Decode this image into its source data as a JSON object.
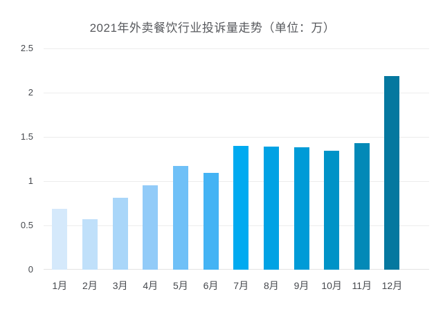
{
  "chart_data": {
    "type": "bar",
    "title": "2021年外卖餐饮行业投诉量走势（单位：万）",
    "categories": [
      "1月",
      "2月",
      "3月",
      "4月",
      "5月",
      "6月",
      "7月",
      "8月",
      "9月",
      "10月",
      "11月",
      "12月"
    ],
    "values": [
      0.69,
      0.57,
      0.81,
      0.95,
      1.17,
      1.09,
      1.4,
      1.39,
      1.38,
      1.34,
      1.43,
      2.19
    ],
    "bar_colors": [
      "#d5e9fb",
      "#c0e0fa",
      "#a9d6f9",
      "#92cbf8",
      "#6fc0f7",
      "#44b3f4",
      "#00aaf0",
      "#00a2e4",
      "#009bd7",
      "#0093c7",
      "#0389b7",
      "#05789f"
    ],
    "xlabel": "",
    "ylabel": "",
    "ylim": [
      0,
      2.5
    ],
    "yticks": [
      0,
      0.5,
      1,
      1.5,
      2,
      2.5
    ],
    "grid": true,
    "legend": false
  },
  "colors": {
    "background": "#ffffff",
    "title_text": "#56585c",
    "axis_text": "#45484d",
    "gridline": "#ececec",
    "baseline": "#e3e3e3"
  }
}
